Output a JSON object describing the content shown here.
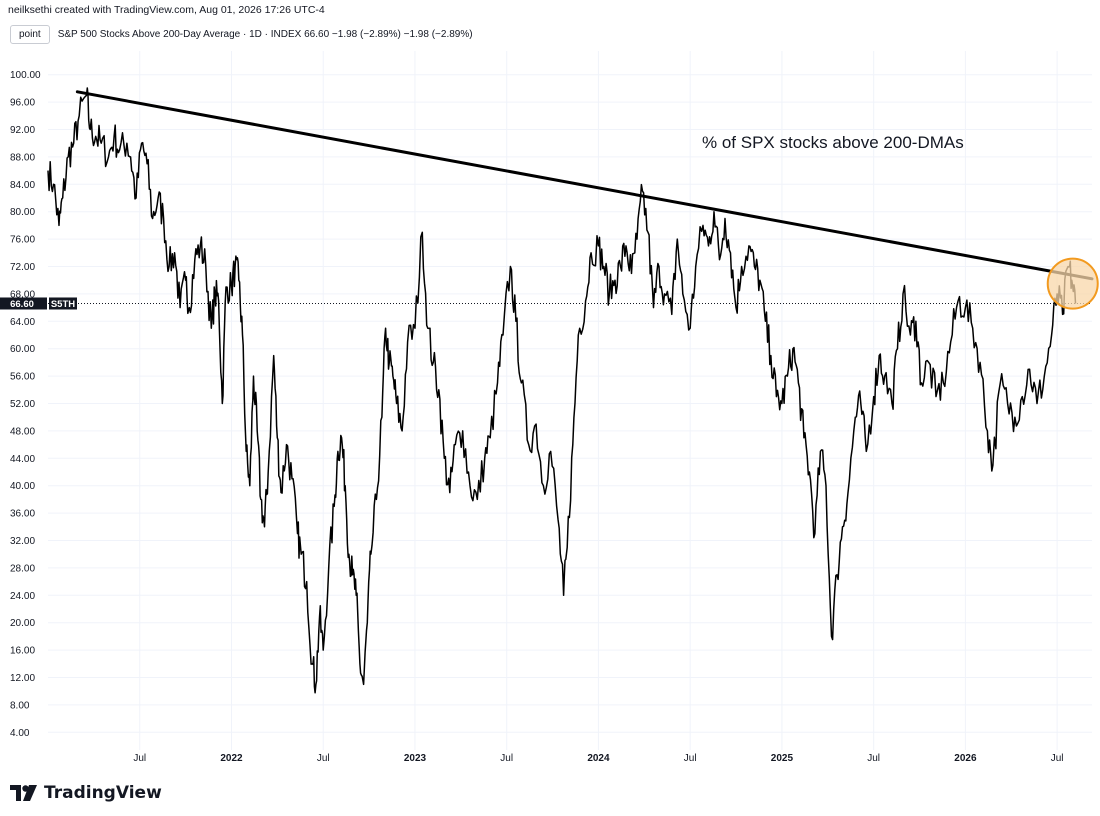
{
  "header": {
    "attribution": "neilksethi created with TradingView.com, Aug 01, 2026 17:26 UTC-4"
  },
  "symbol_bar": {
    "interval_button": "point",
    "legend": "S&P 500 Stocks Above 200-Day Average · 1D · INDEX  66.60  −1.98 (−2.89%)  −1.98 (−2.89%)"
  },
  "annotation": {
    "text": "% of SPX stocks above 200-DMAs"
  },
  "price_marker": {
    "value": "66.60",
    "symbol": "S5TH"
  },
  "footer": {
    "brand": "TradingView"
  },
  "colors": {
    "line": "#000000",
    "highlight_fill": "#f8d7aa",
    "highlight_stroke": "#f29a1f",
    "price_label_bg": "#131722",
    "grid": "#f0f3fa"
  },
  "chart_data": {
    "type": "line",
    "title": "S&P 500 Stocks Above 200-Day Average",
    "xlabel": "",
    "ylabel": "",
    "ylim": [
      2,
      102
    ],
    "y_ticks": [
      "4.00",
      "8.00",
      "12.00",
      "16.00",
      "20.00",
      "24.00",
      "28.00",
      "32.00",
      "36.00",
      "40.00",
      "44.00",
      "48.00",
      "52.00",
      "56.00",
      "60.00",
      "64.00",
      "68.00",
      "72.00",
      "76.00",
      "80.00",
      "84.00",
      "88.00",
      "92.00",
      "96.00",
      "100.00"
    ],
    "x_range": [
      2021.0,
      2026.69
    ],
    "x_ticks": [
      {
        "label": "Jul",
        "x": 2021.5
      },
      {
        "label": "2022",
        "x": 2022.0
      },
      {
        "label": "Jul",
        "x": 2022.5
      },
      {
        "label": "2023",
        "x": 2023.0
      },
      {
        "label": "Jul",
        "x": 2023.5
      },
      {
        "label": "2024",
        "x": 2024.0
      },
      {
        "label": "Jul",
        "x": 2024.5
      },
      {
        "label": "2025",
        "x": 2025.0
      },
      {
        "label": "Jul",
        "x": 2025.5
      },
      {
        "label": "2026",
        "x": 2026.0
      },
      {
        "label": "Jul",
        "x": 2026.5
      }
    ],
    "series": [
      {
        "points": [
          [
            2021.0,
            86
          ],
          [
            2021.03,
            84
          ],
          [
            2021.06,
            78
          ],
          [
            2021.08,
            82
          ],
          [
            2021.11,
            88
          ],
          [
            2021.14,
            90
          ],
          [
            2021.17,
            94
          ],
          [
            2021.21,
            97
          ],
          [
            2021.23,
            92
          ],
          [
            2021.26,
            91
          ],
          [
            2021.29,
            90
          ],
          [
            2021.33,
            88
          ],
          [
            2021.36,
            91
          ],
          [
            2021.39,
            89
          ],
          [
            2021.43,
            90
          ],
          [
            2021.45,
            88
          ],
          [
            2021.48,
            82
          ],
          [
            2021.51,
            90
          ],
          [
            2021.54,
            87
          ],
          [
            2021.57,
            79
          ],
          [
            2021.6,
            82
          ],
          [
            2021.63,
            79
          ],
          [
            2021.66,
            72
          ],
          [
            2021.69,
            74
          ],
          [
            2021.72,
            66
          ],
          [
            2021.75,
            70
          ],
          [
            2021.77,
            66
          ],
          [
            2021.8,
            73
          ],
          [
            2021.83,
            75
          ],
          [
            2021.86,
            72
          ],
          [
            2021.89,
            63
          ],
          [
            2021.91,
            68
          ],
          [
            2021.93,
            67
          ],
          [
            2021.95,
            52
          ],
          [
            2021.97,
            69
          ],
          [
            2022.0,
            69
          ],
          [
            2022.02,
            72
          ],
          [
            2022.04,
            70
          ],
          [
            2022.06,
            62
          ],
          [
            2022.08,
            45
          ],
          [
            2022.1,
            40
          ],
          [
            2022.12,
            56
          ],
          [
            2022.14,
            48
          ],
          [
            2022.16,
            38
          ],
          [
            2022.18,
            34
          ],
          [
            2022.2,
            42
          ],
          [
            2022.23,
            59
          ],
          [
            2022.25,
            47
          ],
          [
            2022.27,
            39
          ],
          [
            2022.3,
            46
          ],
          [
            2022.33,
            41
          ],
          [
            2022.36,
            33
          ],
          [
            2022.38,
            30
          ],
          [
            2022.41,
            26
          ],
          [
            2022.44,
            14
          ],
          [
            2022.46,
            11
          ],
          [
            2022.48,
            21
          ],
          [
            2022.5,
            16
          ],
          [
            2022.53,
            28
          ],
          [
            2022.56,
            37
          ],
          [
            2022.58,
            45
          ],
          [
            2022.6,
            47
          ],
          [
            2022.62,
            40
          ],
          [
            2022.64,
            30
          ],
          [
            2022.66,
            27
          ],
          [
            2022.68,
            24
          ],
          [
            2022.7,
            14
          ],
          [
            2022.72,
            11
          ],
          [
            2022.74,
            20
          ],
          [
            2022.76,
            30
          ],
          [
            2022.79,
            38
          ],
          [
            2022.82,
            50
          ],
          [
            2022.84,
            63
          ],
          [
            2022.86,
            58
          ],
          [
            2022.88,
            56
          ],
          [
            2022.9,
            52
          ],
          [
            2022.93,
            48
          ],
          [
            2022.96,
            61
          ],
          [
            2023.0,
            63
          ],
          [
            2023.04,
            77
          ],
          [
            2023.07,
            63
          ],
          [
            2023.1,
            58
          ],
          [
            2023.13,
            54
          ],
          [
            2023.16,
            44
          ],
          [
            2023.19,
            39
          ],
          [
            2023.22,
            46
          ],
          [
            2023.26,
            48
          ],
          [
            2023.3,
            40
          ],
          [
            2023.34,
            38
          ],
          [
            2023.38,
            44
          ],
          [
            2023.41,
            47
          ],
          [
            2023.45,
            55
          ],
          [
            2023.48,
            62
          ],
          [
            2023.52,
            72
          ],
          [
            2023.55,
            64
          ],
          [
            2023.58,
            55
          ],
          [
            2023.62,
            46
          ],
          [
            2023.66,
            49
          ],
          [
            2023.7,
            40
          ],
          [
            2023.74,
            45
          ],
          [
            2023.78,
            35
          ],
          [
            2023.81,
            24
          ],
          [
            2023.83,
            31
          ],
          [
            2023.86,
            46
          ],
          [
            2023.89,
            62
          ],
          [
            2023.93,
            67
          ],
          [
            2023.96,
            74
          ],
          [
            2024.0,
            75
          ],
          [
            2024.03,
            72
          ],
          [
            2024.06,
            68
          ],
          [
            2024.09,
            70
          ],
          [
            2024.12,
            72
          ],
          [
            2024.15,
            75
          ],
          [
            2024.18,
            71
          ],
          [
            2024.21,
            76
          ],
          [
            2024.24,
            83
          ],
          [
            2024.27,
            77
          ],
          [
            2024.3,
            66
          ],
          [
            2024.33,
            72
          ],
          [
            2024.36,
            68
          ],
          [
            2024.4,
            65
          ],
          [
            2024.43,
            76
          ],
          [
            2024.46,
            68
          ],
          [
            2024.5,
            63
          ],
          [
            2024.53,
            72
          ],
          [
            2024.57,
            78
          ],
          [
            2024.6,
            75
          ],
          [
            2024.63,
            80
          ],
          [
            2024.66,
            73
          ],
          [
            2024.69,
            79
          ],
          [
            2024.72,
            74
          ],
          [
            2024.75,
            66
          ],
          [
            2024.78,
            72
          ],
          [
            2024.82,
            75
          ],
          [
            2024.85,
            72
          ],
          [
            2024.88,
            70
          ],
          [
            2024.91,
            64
          ],
          [
            2024.94,
            59
          ],
          [
            2024.97,
            53
          ],
          [
            2025.0,
            52
          ],
          [
            2025.03,
            56
          ],
          [
            2025.06,
            60
          ],
          [
            2025.09,
            55
          ],
          [
            2025.12,
            47
          ],
          [
            2025.15,
            42
          ],
          [
            2025.18,
            33
          ],
          [
            2025.21,
            45
          ],
          [
            2025.24,
            40
          ],
          [
            2025.27,
            18
          ],
          [
            2025.3,
            27
          ],
          [
            2025.33,
            34
          ],
          [
            2025.36,
            39
          ],
          [
            2025.4,
            50
          ],
          [
            2025.43,
            52
          ],
          [
            2025.46,
            45
          ],
          [
            2025.5,
            53
          ],
          [
            2025.53,
            59
          ],
          [
            2025.56,
            56
          ],
          [
            2025.6,
            52
          ],
          [
            2025.63,
            60
          ],
          [
            2025.66,
            68
          ],
          [
            2025.7,
            62
          ],
          [
            2025.73,
            64
          ],
          [
            2025.76,
            55
          ],
          [
            2025.8,
            58
          ],
          [
            2025.84,
            53
          ],
          [
            2025.88,
            55
          ],
          [
            2025.92,
            61
          ],
          [
            2025.96,
            67
          ],
          [
            2026.0,
            66
          ],
          [
            2026.04,
            63
          ],
          [
            2026.08,
            58
          ],
          [
            2026.12,
            48
          ],
          [
            2026.15,
            43
          ],
          [
            2026.19,
            55
          ],
          [
            2026.23,
            52
          ],
          [
            2026.27,
            50
          ],
          [
            2026.31,
            53
          ],
          [
            2026.35,
            57
          ],
          [
            2026.39,
            52
          ],
          [
            2026.43,
            56
          ],
          [
            2026.47,
            62
          ],
          [
            2026.5,
            68
          ],
          [
            2026.53,
            65
          ],
          [
            2026.56,
            72
          ],
          [
            2026.58,
            70
          ],
          [
            2026.6,
            66.6
          ]
        ]
      }
    ],
    "trendline": {
      "start": [
        2021.16,
        97.5
      ],
      "end": [
        2026.69,
        70.2
      ]
    },
    "highlight": {
      "center": [
        2026.585,
        69.5
      ]
    },
    "last_value": 66.6,
    "grid": true
  }
}
